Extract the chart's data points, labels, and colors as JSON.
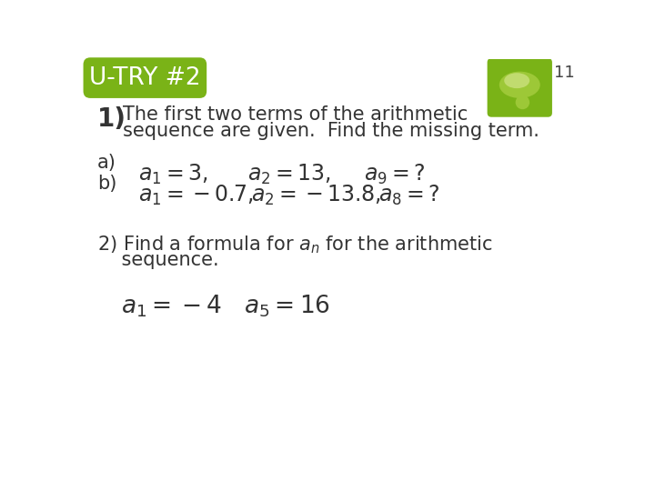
{
  "background_color": "#ffffff",
  "header_bg_color": "#7ab317",
  "header_text": "U-TRY #2",
  "header_text_color": "#ffffff",
  "slide_number": "11",
  "slide_number_color": "#444444",
  "icon_bg_color": "#7ab317",
  "body_text_color": "#333333",
  "label1_line1": "The first two terms of the arithmetic",
  "label1_line2": "sequence are given.  Find the missing term.",
  "label_a": "a)",
  "label_b": "b)",
  "eq_a1": "$a_1 = 3,$",
  "eq_a2": "$a_2 = 13,$",
  "eq_a9": "$a_9 = ?$",
  "eq_b1": "$a_1 = -0.7,$",
  "eq_b2": "$a_2 = -13.8,$",
  "eq_b8": "$a_8 = ?$",
  "label2_line1": "2) Find a formula for $a_n$ for the arithmetic",
  "label2_line2": "    sequence.",
  "eq_c1": "$a_1 = -4$",
  "eq_c5": "$a_5 = 16$",
  "font_family": "DejaVu Sans",
  "math_fontsize": 17,
  "text_fontsize": 15,
  "header_fontsize": 19,
  "number_fontsize": 13
}
